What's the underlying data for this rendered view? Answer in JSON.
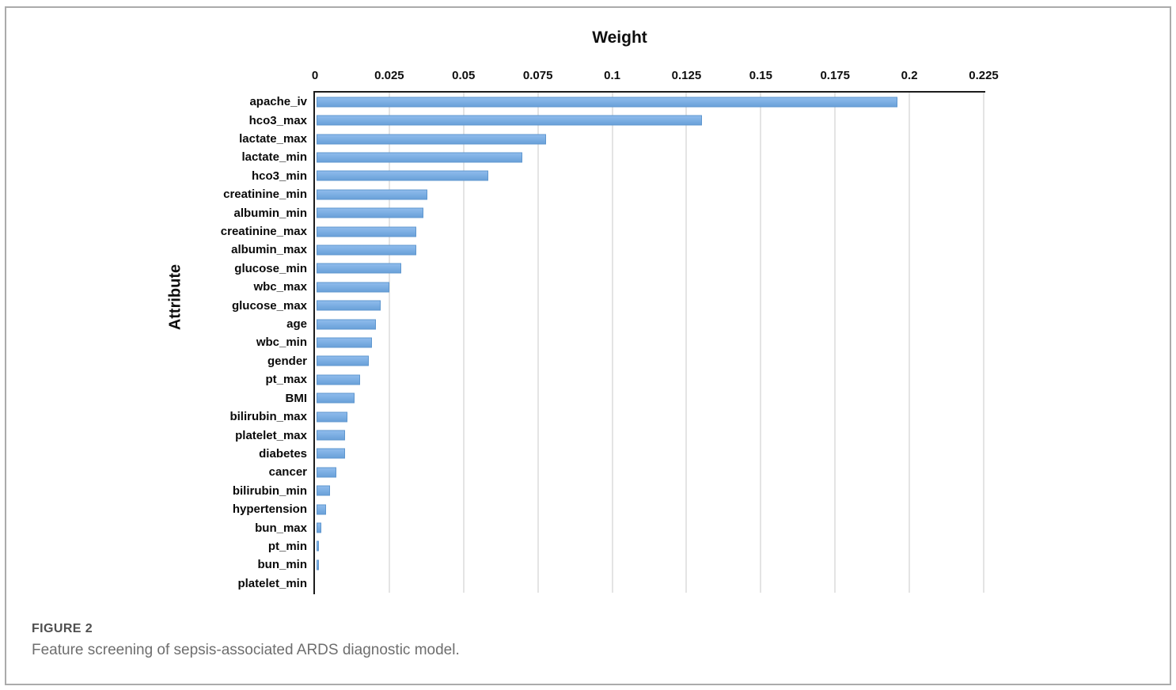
{
  "figure": {
    "caption_label": "FIGURE 2",
    "caption_text": "Feature screening of sepsis-associated ARDS diagnostic model."
  },
  "chart_data": {
    "type": "bar",
    "orientation": "horizontal",
    "title": "Weight",
    "xlabel": "Weight",
    "ylabel": "Attribute",
    "xlim": [
      0,
      0.225
    ],
    "grid": true,
    "legend": "none",
    "bar_color": "#7AADE2",
    "bar_border_color": "#5F97CF",
    "x_ticks": [
      0,
      0.025,
      0.05,
      0.075,
      0.1,
      0.125,
      0.15,
      0.175,
      0.2,
      0.225
    ],
    "x_tick_labels": [
      "0",
      "0.025",
      "0.05",
      "0.075",
      "0.1",
      "0.125",
      "0.15",
      "0.175",
      "0.2",
      "0.225"
    ],
    "categories": [
      "apache_iv",
      "hco3_max",
      "lactate_max",
      "lactate_min",
      "hco3_min",
      "creatinine_min",
      "albumin_min",
      "creatinine_max",
      "albumin_max",
      "glucose_min",
      "wbc_max",
      "glucose_max",
      "age",
      "wbc_min",
      "gender",
      "pt_max",
      "BMI",
      "bilirubin_max",
      "platelet_max",
      "diabetes",
      "cancer",
      "bilirubin_min",
      "hypertension",
      "bun_max",
      "pt_min",
      "bun_min",
      "platelet_min"
    ],
    "values": [
      0.196,
      0.13,
      0.0775,
      0.0695,
      0.058,
      0.0375,
      0.036,
      0.0335,
      0.0335,
      0.0285,
      0.0245,
      0.0215,
      0.02,
      0.0187,
      0.0177,
      0.0148,
      0.0127,
      0.0105,
      0.0095,
      0.0095,
      0.0068,
      0.0045,
      0.0032,
      0.0016,
      0.0008,
      0.0008,
      0
    ]
  },
  "colors": {
    "axis": "#1C1C1C",
    "gridline": "#E4E4E4",
    "frame_border": "#ABABAB",
    "caption_label": "#4F4F4F",
    "caption_text": "#6E6E6E"
  }
}
